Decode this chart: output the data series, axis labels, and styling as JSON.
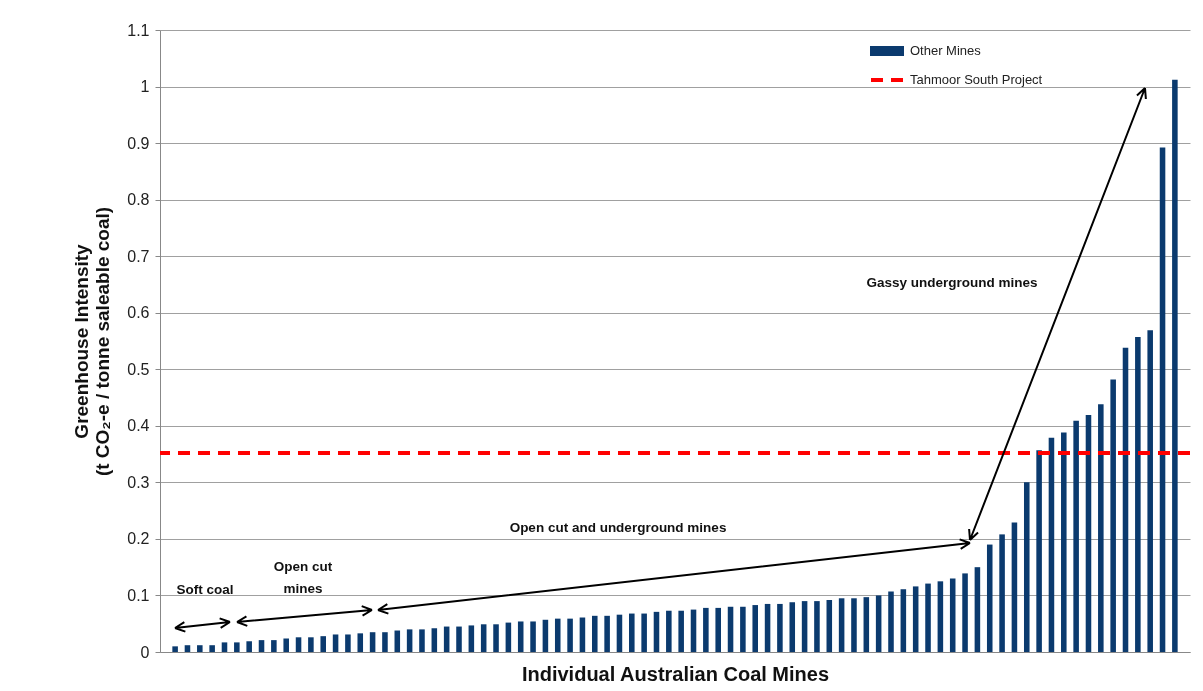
{
  "chart_data": {
    "type": "bar",
    "xlabel": "Individual Australian Coal Mines",
    "ylabel": "Greenhouse Intensity\n(t CO₂-e / tonne saleable coal)",
    "categories": [
      null,
      null,
      null,
      null,
      null,
      null,
      null,
      null,
      null,
      null,
      null,
      null,
      null,
      null,
      null,
      null,
      null,
      null,
      null,
      null,
      null,
      null,
      null,
      null,
      null,
      null,
      null,
      null,
      null,
      null,
      null,
      null,
      null,
      null,
      null,
      null,
      null,
      null,
      null,
      null,
      null,
      null,
      null,
      null,
      null,
      null,
      null,
      null,
      null,
      null,
      null,
      null,
      null,
      null,
      null,
      null,
      null,
      null,
      null,
      null,
      null,
      null,
      null,
      null,
      null,
      null,
      null,
      null,
      null,
      null,
      null,
      null,
      null,
      null,
      null,
      null,
      null,
      null,
      null,
      null,
      null,
      null
    ],
    "series": [
      {
        "name": "Other Mines",
        "color": "#0b3a6e",
        "values": [
          0.01,
          0.012,
          0.012,
          0.012,
          0.017,
          0.017,
          0.019,
          0.021,
          0.021,
          0.024,
          0.026,
          0.026,
          0.028,
          0.031,
          0.031,
          0.033,
          0.035,
          0.035,
          0.038,
          0.04,
          0.04,
          0.042,
          0.045,
          0.045,
          0.047,
          0.049,
          0.049,
          0.052,
          0.054,
          0.054,
          0.057,
          0.059,
          0.059,
          0.061,
          0.064,
          0.064,
          0.066,
          0.068,
          0.068,
          0.071,
          0.073,
          0.073,
          0.075,
          0.078,
          0.078,
          0.08,
          0.08,
          0.083,
          0.085,
          0.085,
          0.088,
          0.09,
          0.09,
          0.092,
          0.095,
          0.095,
          0.097,
          0.1,
          0.107,
          0.111,
          0.116,
          0.121,
          0.125,
          0.13,
          0.139,
          0.15,
          0.19,
          0.208,
          0.229,
          0.3,
          0.357,
          0.379,
          0.388,
          0.409,
          0.419,
          0.438,
          0.482,
          0.538,
          0.557,
          0.569,
          0.892,
          1.012
        ]
      }
    ],
    "ylim": [
      0,
      1.1
    ],
    "yticks": [
      0,
      0.1,
      0.2,
      0.3,
      0.4,
      0.5,
      0.6,
      0.7,
      0.8,
      0.9,
      1,
      1.1
    ],
    "grid": "y",
    "legend": "top right",
    "ref_lines": [
      {
        "axis": "y",
        "value": 0.352,
        "label": "Tahmoor South Project",
        "color": "#ff0000",
        "line_style": "dashed"
      }
    ],
    "annotations": [
      "Soft coal",
      "Open cut mines",
      "Open cut and underground mines",
      "Gassy underground mines"
    ]
  }
}
